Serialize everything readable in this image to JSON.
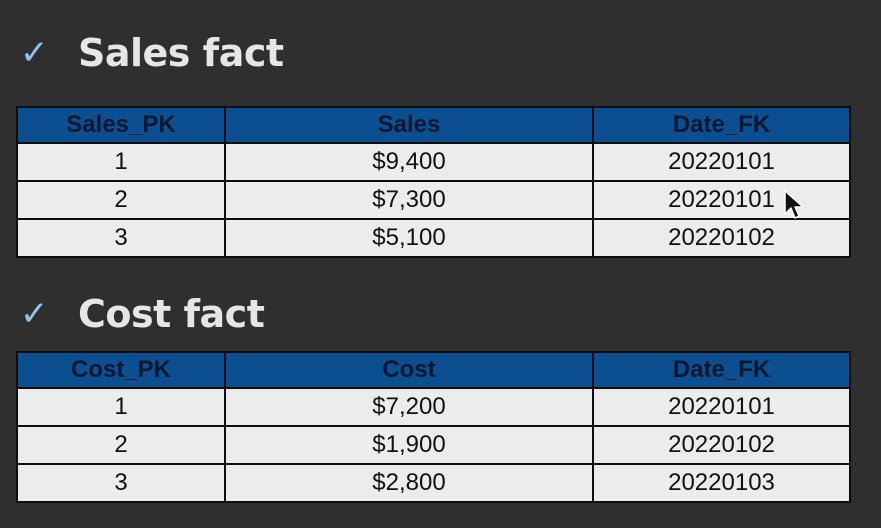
{
  "sections": [
    {
      "title": "Sales fact",
      "columns": [
        "Sales_PK",
        "Sales",
        "Date_FK"
      ],
      "rows": [
        [
          "1",
          "$9,400",
          "20220101"
        ],
        [
          "2",
          "$7,300",
          "20220101"
        ],
        [
          "3",
          "$5,100",
          "20220102"
        ]
      ]
    },
    {
      "title": "Cost fact",
      "columns": [
        "Cost_PK",
        "Cost",
        "Date_FK"
      ],
      "rows": [
        [
          "1",
          "$7,200",
          "20220101"
        ],
        [
          "2",
          "$1,900",
          "20220102"
        ],
        [
          "3",
          "$2,800",
          "20220103"
        ]
      ]
    }
  ],
  "icons": {
    "bullet": "checkmark-icon",
    "pointer": "mouse-cursor-icon"
  },
  "colors": {
    "background": "#302f2f",
    "header_fill": "#0b4f91",
    "row_fill": "#ececec",
    "checkmark": "#8fc3ef"
  }
}
